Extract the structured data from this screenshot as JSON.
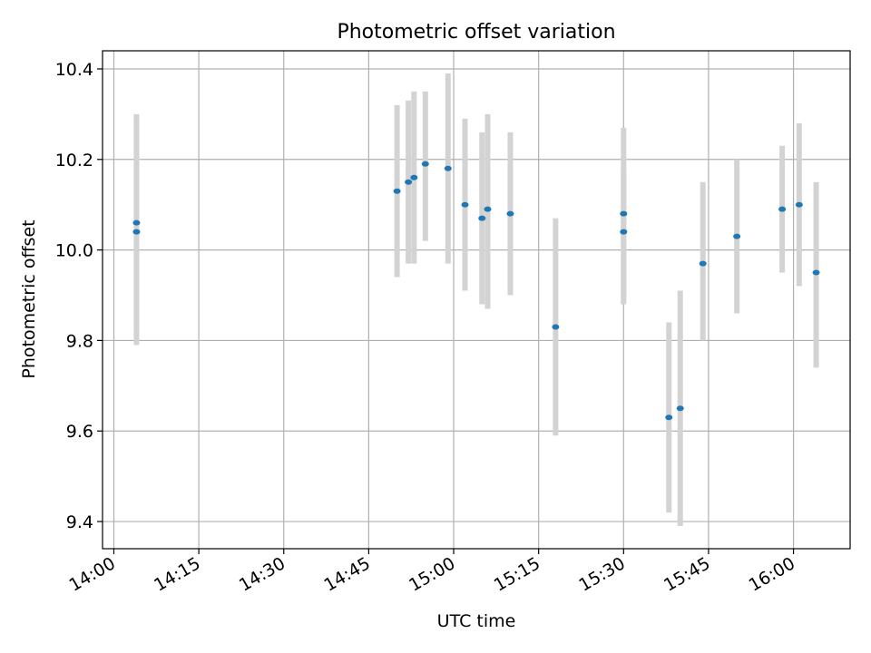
{
  "chart_data": {
    "type": "scatter",
    "title": "Photometric offset variation",
    "xlabel": "UTC time",
    "ylabel": "Photometric offset",
    "x_ticks": [
      "14:00",
      "14:15",
      "14:30",
      "14:45",
      "15:00",
      "15:15",
      "15:30",
      "15:45",
      "16:00"
    ],
    "y_ticks": [
      "9.4",
      "9.6",
      "9.8",
      "10.0",
      "10.2",
      "10.4"
    ],
    "xlim": [
      "13:58",
      "16:10"
    ],
    "ylim": [
      9.34,
      10.44
    ],
    "grid": true,
    "colors": {
      "point": "#1f77b4",
      "errorbar": "#d3d3d3",
      "grid": "#b0b0b0"
    },
    "points": [
      {
        "x": "14:04",
        "y": 10.04,
        "err_low": 9.79,
        "err_high": 10.29
      },
      {
        "x": "14:04",
        "y": 10.06,
        "err_low": 9.82,
        "err_high": 10.3
      },
      {
        "x": "14:50",
        "y": 10.13,
        "err_low": 9.94,
        "err_high": 10.32
      },
      {
        "x": "14:52",
        "y": 10.15,
        "err_low": 9.97,
        "err_high": 10.33
      },
      {
        "x": "14:53",
        "y": 10.16,
        "err_low": 9.97,
        "err_high": 10.35
      },
      {
        "x": "14:55",
        "y": 10.19,
        "err_low": 10.02,
        "err_high": 10.35
      },
      {
        "x": "14:59",
        "y": 10.18,
        "err_low": 9.97,
        "err_high": 10.39
      },
      {
        "x": "15:02",
        "y": 10.1,
        "err_low": 9.91,
        "err_high": 10.29
      },
      {
        "x": "15:05",
        "y": 10.07,
        "err_low": 9.88,
        "err_high": 10.26
      },
      {
        "x": "15:06",
        "y": 10.09,
        "err_low": 9.87,
        "err_high": 10.3
      },
      {
        "x": "15:10",
        "y": 10.08,
        "err_low": 9.9,
        "err_high": 10.26
      },
      {
        "x": "15:18",
        "y": 9.83,
        "err_low": 9.59,
        "err_high": 10.07
      },
      {
        "x": "15:30",
        "y": 10.04,
        "err_low": 9.89,
        "err_high": 10.18
      },
      {
        "x": "15:30",
        "y": 10.08,
        "err_low": 9.88,
        "err_high": 10.27
      },
      {
        "x": "15:38",
        "y": 9.63,
        "err_low": 9.42,
        "err_high": 9.84
      },
      {
        "x": "15:40",
        "y": 9.65,
        "err_low": 9.39,
        "err_high": 9.91
      },
      {
        "x": "15:44",
        "y": 9.97,
        "err_low": 9.8,
        "err_high": 10.15
      },
      {
        "x": "15:50",
        "y": 10.03,
        "err_low": 9.86,
        "err_high": 10.2
      },
      {
        "x": "15:58",
        "y": 10.09,
        "err_low": 9.95,
        "err_high": 10.23
      },
      {
        "x": "16:01",
        "y": 10.1,
        "err_low": 9.92,
        "err_high": 10.28
      },
      {
        "x": "16:04",
        "y": 9.95,
        "err_low": 9.74,
        "err_high": 10.15
      }
    ]
  }
}
